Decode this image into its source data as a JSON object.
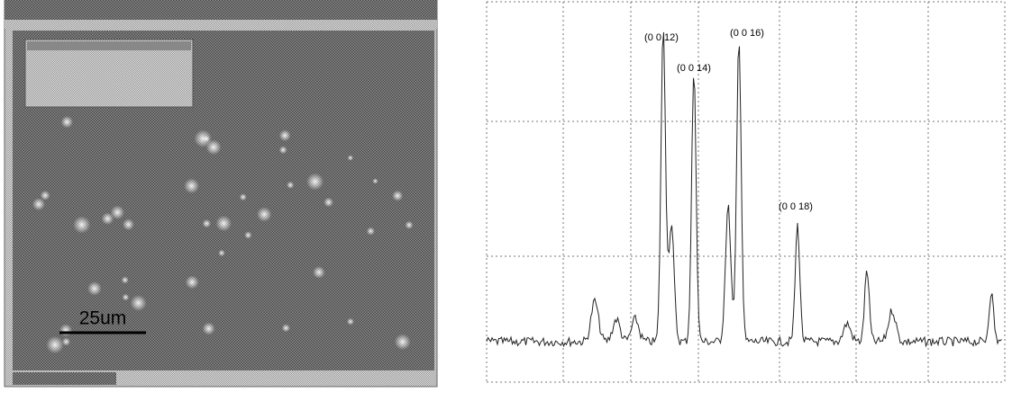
{
  "micrograph": {
    "scale_bar": "25um"
  },
  "pattern": {
    "peaks": [
      "(0 0 12)",
      "(0 0 14)",
      "(0 0 16)",
      "(0 0 18)"
    ]
  }
}
